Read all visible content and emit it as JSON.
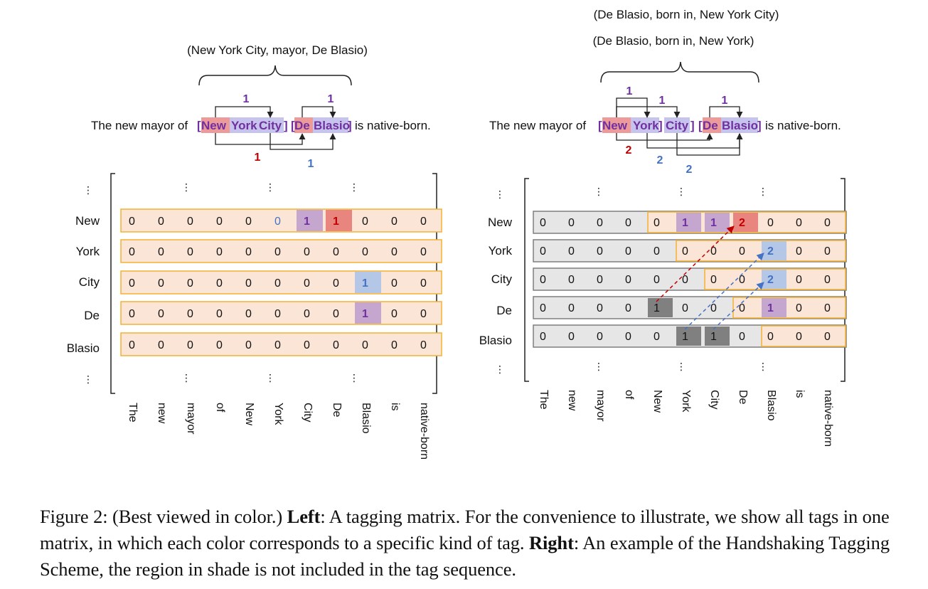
{
  "left": {
    "triple": "(New York City, mayor, De Blasio)",
    "sentence": {
      "pre": "The new mayor of",
      "open1": "[",
      "w_new": "New",
      "w_york": "York",
      "w_city": "City",
      "close1": "]",
      "open2": "[",
      "w_de": "De",
      "w_blasio": "Blasio",
      "close2": "]",
      "post": "is native-born."
    },
    "arc_labels": [
      {
        "text": "1",
        "color": "#7030a0"
      },
      {
        "text": "1",
        "color": "#7030a0"
      },
      {
        "text": "1",
        "color": "#c00000"
      },
      {
        "text": "1",
        "color": "#4472c4"
      }
    ],
    "row_labels": [
      "New",
      "York",
      "City",
      "De",
      "Blasio"
    ],
    "col_labels": [
      "The",
      "new",
      "mayor",
      "of",
      "New",
      "York",
      "City",
      "De",
      "Blasio",
      "is",
      "native-born"
    ],
    "rows": [
      [
        "0",
        "0",
        "0",
        "0",
        "0",
        "0",
        "1",
        "1",
        "0",
        "0",
        "0"
      ],
      [
        "0",
        "0",
        "0",
        "0",
        "0",
        "0",
        "0",
        "0",
        "0",
        "0",
        "0"
      ],
      [
        "0",
        "0",
        "0",
        "0",
        "0",
        "0",
        "0",
        "0",
        "1",
        "0",
        "0"
      ],
      [
        "0",
        "0",
        "0",
        "0",
        "0",
        "0",
        "0",
        "0",
        "1",
        "0",
        "0"
      ],
      [
        "0",
        "0",
        "0",
        "0",
        "0",
        "0",
        "0",
        "0",
        "0",
        "0",
        "0"
      ]
    ],
    "ellipsis": "⋮"
  },
  "right": {
    "triple_1": "(De Blasio, born in, New York City)",
    "triple_2": "(De Blasio, born in, New York)",
    "sentence": {
      "pre": "The new mayor of",
      "open1": "[",
      "w_new": "New",
      "w_york": "York",
      "close_york": "]",
      "w_city": "City",
      "close1": "]",
      "open2": "[",
      "w_de": "De",
      "w_blasio": "Blasio",
      "close2": "]",
      "post": "is native-born."
    },
    "arc_labels": [
      {
        "text": "1",
        "color": "#7030a0"
      },
      {
        "text": "1",
        "color": "#7030a0"
      },
      {
        "text": "1",
        "color": "#7030a0"
      },
      {
        "text": "2",
        "color": "#c00000"
      },
      {
        "text": "2",
        "color": "#4472c4"
      },
      {
        "text": "2",
        "color": "#4472c4"
      }
    ],
    "row_labels": [
      "New",
      "York",
      "City",
      "De",
      "Blasio"
    ],
    "col_labels": [
      "The",
      "new",
      "mayor",
      "of",
      "New",
      "York",
      "City",
      "De",
      "Blasio",
      "is",
      "native-born"
    ],
    "rows": [
      [
        "0",
        "0",
        "0",
        "0",
        "0",
        "1",
        "1",
        "2",
        "0",
        "0",
        "0"
      ],
      [
        "0",
        "0",
        "0",
        "0",
        "0",
        "0",
        "0",
        "0",
        "2",
        "0",
        "0"
      ],
      [
        "0",
        "0",
        "0",
        "0",
        "0",
        "0",
        "0",
        "0",
        "2",
        "0",
        "0"
      ],
      [
        "0",
        "0",
        "0",
        "0",
        "1",
        "0",
        "0",
        "0",
        "1",
        "0",
        "0"
      ],
      [
        "0",
        "0",
        "0",
        "0",
        "0",
        "1",
        "1",
        "0",
        "0",
        "0",
        "0"
      ]
    ],
    "ellipsis": "⋮"
  },
  "colors": {
    "peach": "#fbe5d6",
    "gray": "#e7e6e6",
    "orange_border": "#f2b233",
    "gray_border": "#7f7f7f",
    "purple": "#7030a0",
    "purple_fill": "#c5a6cf",
    "red": "#c00000",
    "red_fill": "#e8857e",
    "blue": "#4472c4",
    "blue_fill": "#b4c7e7",
    "dark_fill": "#808080",
    "ent_red": "#ec9a9a",
    "ent_blue": "#c6c3ec"
  },
  "caption": {
    "fig_label": "Figure 2: (Best viewed in color.)",
    "left_label": "Left",
    "left_text": ": A tagging matrix. For the convenience to illustrate, we show all tags in one matrix, in which each color corresponds to a specific kind of tag.",
    "right_label": "Right",
    "right_text": ": An example of the Handshaking Tagging Scheme, the region in shade is not included in the tag sequence."
  }
}
